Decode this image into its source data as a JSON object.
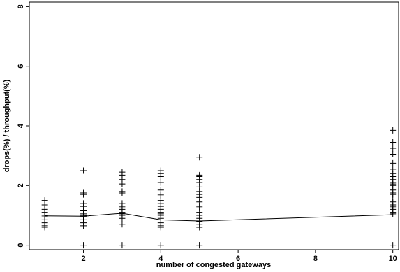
{
  "chart_data": {
    "type": "scatter",
    "title": "",
    "xlabel": "number of congested gateways",
    "ylabel": "drops(%) / throughput(%)",
    "xlim": [
      0.6,
      10.15
    ],
    "ylim": [
      -0.15,
      8.15
    ],
    "xticks": [
      2,
      4,
      6,
      8,
      10
    ],
    "yticks": [
      0,
      2,
      4,
      6,
      8
    ],
    "xtick_labels": [
      "2",
      "4",
      "6",
      "8",
      "10"
    ],
    "ytick_labels": [
      "0",
      "2",
      "4",
      "6",
      "8"
    ],
    "grid": false,
    "marker": "+",
    "points": [
      {
        "x": 1,
        "y": [
          1.5,
          1.35,
          1.2,
          1.1,
          1.0,
          0.95,
          0.85,
          0.75,
          0.65,
          0.6
        ]
      },
      {
        "x": 2,
        "y": [
          2.5,
          1.75,
          1.7,
          1.4,
          1.3,
          1.15,
          1.05,
          1.0,
          0.95,
          0.85,
          0.75,
          0.65,
          0.0
        ]
      },
      {
        "x": 3,
        "y": [
          2.45,
          2.35,
          2.2,
          2.05,
          1.8,
          1.75,
          1.4,
          1.3,
          1.25,
          1.2,
          1.1,
          1.05,
          1.0,
          0.9,
          0.7,
          0.0
        ]
      },
      {
        "x": 4,
        "y": [
          2.5,
          2.4,
          2.3,
          2.1,
          1.85,
          1.7,
          1.65,
          1.5,
          1.4,
          1.3,
          1.2,
          1.1,
          1.05,
          1.0,
          0.9,
          0.75,
          0.65,
          0.6,
          0.0,
          0.0
        ]
      },
      {
        "x": 5,
        "y": [
          2.95,
          2.35,
          2.3,
          2.2,
          2.1,
          1.95,
          1.8,
          1.7,
          1.6,
          1.45,
          1.3,
          1.25,
          1.1,
          1.0,
          0.9,
          0.8,
          0.7,
          0.6,
          0.0,
          0.0
        ]
      },
      {
        "x": 10,
        "y": [
          3.85,
          3.45,
          3.25,
          3.05,
          2.75,
          2.55,
          2.4,
          2.3,
          2.2,
          2.1,
          2.05,
          2.0,
          1.85,
          1.75,
          1.7,
          1.55,
          1.45,
          1.35,
          1.3,
          1.25,
          1.2,
          1.1,
          1.05,
          0.0
        ]
      }
    ],
    "mean_line": {
      "x": [
        1,
        2,
        3,
        4,
        5,
        10
      ],
      "y": [
        0.98,
        0.97,
        1.07,
        0.85,
        0.81,
        1.02
      ]
    }
  }
}
